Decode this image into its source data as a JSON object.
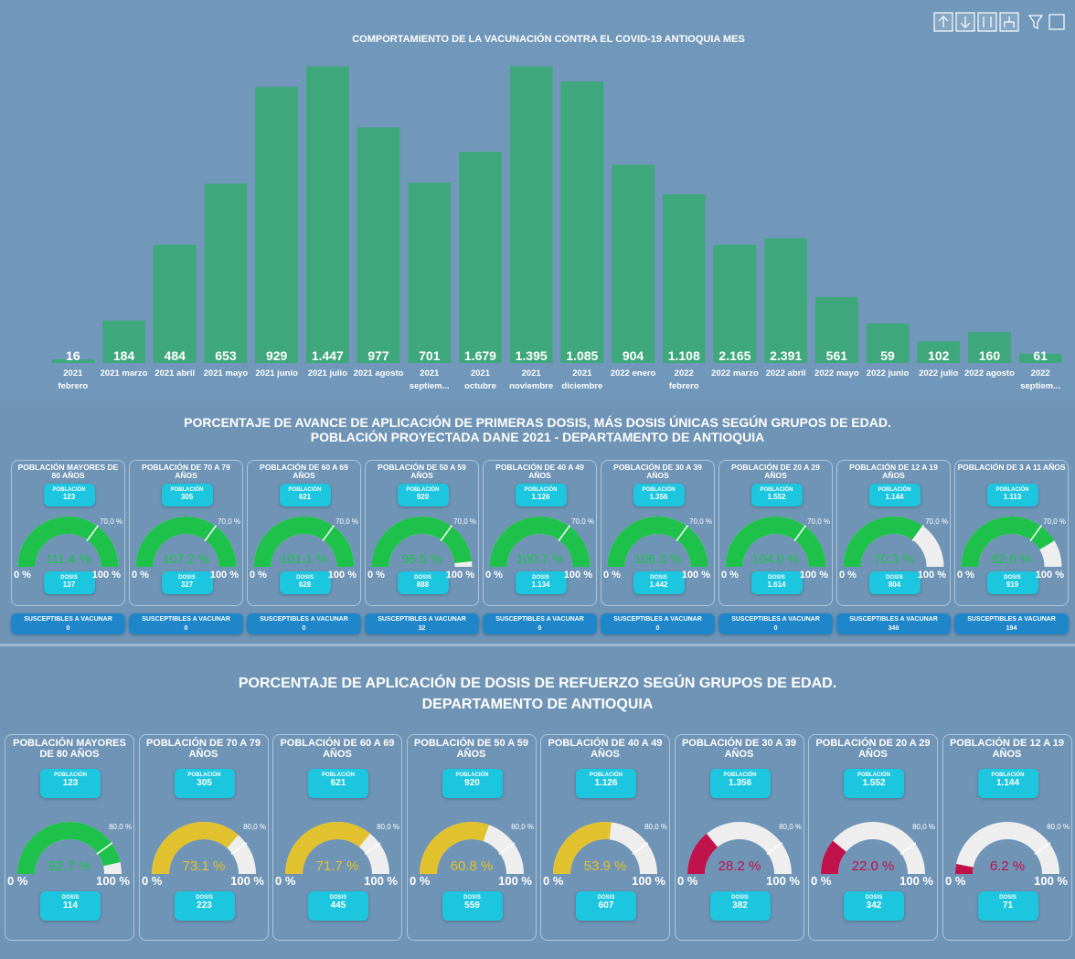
{
  "chart_data": {
    "type": "bar",
    "title": "COMPORTAMIENTO DE LA VACUNACIÓN CONTRA EL COVID-19 ANTIOQUIA MES",
    "categories": [
      "2021 febrero",
      "2021 marzo",
      "2021 abril",
      "2021 mayo",
      "2021 junio",
      "2021 julio",
      "2021 agosto",
      "2021 septiem...",
      "2021 octubre",
      "2021 noviembre",
      "2021 diciembre",
      "2022 enero",
      "2022 febrero",
      "2022 marzo",
      "2022 abril",
      "2022 mayo",
      "2022 junio",
      "2022 julio",
      "2022 agosto",
      "2022 septiem..."
    ],
    "values": [
      0.08,
      0.92,
      2.57,
      3.9,
      6.0,
      6.45,
      5.12,
      3.92,
      4.59,
      6.45,
      6.12,
      4.31,
      3.67,
      2.57,
      2.71,
      1.43,
      0.86,
      0.47,
      0.67,
      0.2
    ],
    "labels": [
      "16",
      "184",
      "484",
      "653",
      "929",
      "1.447",
      "977",
      "701",
      "1.679",
      "1.395",
      "1.085",
      "904",
      "1.108",
      "2.165",
      "2.391",
      "561",
      "59",
      "102",
      "160",
      "61"
    ],
    "color": "#3ea77c",
    "ylim": [
      0,
      6.5
    ]
  },
  "section1": {
    "title": [
      "PORCENTAJE DE AVANCE DE APLICACIÓN DE PRIMERAS DOSIS, MÁS DOSIS ÚNICAS SEGÚN GRUPOS DE EDAD.",
      "POBLACIÓN PROYECTADA DANE 2021 - DEPARTAMENTO DE ANTIOQUIA"
    ],
    "population_label": "POBLACIÓN",
    "dose_label": "DOSIS",
    "susceptible_label": "SUSCEPTIBLES A VACUNAR",
    "target": {
      "value": 70,
      "label": "70,0 %"
    },
    "min": {
      "value": 0,
      "label": "0 %"
    },
    "max": {
      "value": 100,
      "label": "100 %"
    },
    "groups": [
      {
        "name": "POBLACIÓN MAYORES DE 80 AÑOS",
        "population": "123",
        "percent": 111.4,
        "percent_label": "111.4 %",
        "doses": "137",
        "susceptible": "0",
        "color": "#1ec24a"
      },
      {
        "name": "POBLACIÓN DE 70 A 79 AÑOS",
        "population": "305",
        "percent": 107.2,
        "percent_label": "107.2 %",
        "doses": "327",
        "susceptible": "0",
        "color": "#1ec24a"
      },
      {
        "name": "POBLACIÓN DE 60 A 69 AÑOS",
        "population": "621",
        "percent": 101.1,
        "percent_label": "101.1 %",
        "doses": "628",
        "susceptible": "0",
        "color": "#1ec24a"
      },
      {
        "name": "POBLACIÓN DE 50 A 59 AÑOS",
        "population": "920",
        "percent": 96.5,
        "percent_label": "96.5 %",
        "doses": "888",
        "susceptible": "32",
        "color": "#1ec24a"
      },
      {
        "name": "POBLACIÓN DE 40 A 49 AÑOS",
        "population": "1.126",
        "percent": 100.7,
        "percent_label": "100.7 %",
        "doses": "1.134",
        "susceptible": "0",
        "color": "#1ec24a"
      },
      {
        "name": "POBLACIÓN DE 30 A 39 AÑOS",
        "population": "1.356",
        "percent": 106.3,
        "percent_label": "106.3 %",
        "doses": "1.442",
        "susceptible": "0",
        "color": "#1ec24a"
      },
      {
        "name": "POBLACIÓN DE 20 A 29 AÑOS",
        "population": "1.552",
        "percent": 104.0,
        "percent_label": "104.0 %",
        "doses": "1.614",
        "susceptible": "0",
        "color": "#1ec24a"
      },
      {
        "name": "POBLACIÓN DE 12 A 19 AÑOS",
        "population": "1.144",
        "percent": 70.3,
        "percent_label": "70.3 %",
        "doses": "804",
        "susceptible": "340",
        "color": "#1ec24a"
      },
      {
        "name": "POBLACIÓN DE 3 A 11 AÑOS",
        "population": "1.113",
        "percent": 82.6,
        "percent_label": "82.6 %",
        "doses": "919",
        "susceptible": "194",
        "color": "#1ec24a"
      }
    ]
  },
  "section2": {
    "title": [
      "PORCENTAJE DE APLICACIÓN DE DOSIS DE REFUERZO SEGÚN GRUPOS DE EDAD.",
      "DEPARTAMENTO DE ANTIOQUIA"
    ],
    "population_label": "POBLACIÓN",
    "dose_label": "DOSIS",
    "target": {
      "value": 80,
      "label": "80,0 %"
    },
    "min": {
      "value": 0,
      "label": "0 %"
    },
    "max": {
      "value": 100,
      "label": "100 %"
    },
    "groups": [
      {
        "name": "POBLACIÓN MAYORES DE 80 AÑOS",
        "population": "123",
        "percent": 92.7,
        "percent_label": "92.7 %",
        "doses": "114",
        "color": "#1ec24a"
      },
      {
        "name": "POBLACIÓN DE 70 A 79 AÑOS",
        "population": "305",
        "percent": 73.1,
        "percent_label": "73.1 %",
        "doses": "223",
        "color": "#e2c12f"
      },
      {
        "name": "POBLACIÓN DE 60 A 69 AÑOS",
        "population": "621",
        "percent": 71.7,
        "percent_label": "71.7 %",
        "doses": "445",
        "color": "#e2c12f"
      },
      {
        "name": "POBLACIÓN DE 50 A 59 AÑOS",
        "population": "920",
        "percent": 60.8,
        "percent_label": "60.8 %",
        "doses": "559",
        "color": "#e2c12f"
      },
      {
        "name": "POBLACIÓN DE 40 A 49 AÑOS",
        "population": "1.126",
        "percent": 53.9,
        "percent_label": "53.9 %",
        "doses": "607",
        "color": "#e2c12f"
      },
      {
        "name": "POBLACIÓN DE 30 A 39 AÑOS",
        "population": "1.356",
        "percent": 28.2,
        "percent_label": "28.2 %",
        "doses": "382",
        "color": "#c0124b"
      },
      {
        "name": "POBLACIÓN DE 20 A 29 AÑOS",
        "population": "1.552",
        "percent": 22.0,
        "percent_label": "22.0 %",
        "doses": "342",
        "color": "#c0124b"
      },
      {
        "name": "POBLACIÓN DE 12 A 19 AÑOS",
        "population": "1.144",
        "percent": 6.2,
        "percent_label": "6.2 %",
        "doses": "71",
        "color": "#c0124b"
      }
    ]
  }
}
